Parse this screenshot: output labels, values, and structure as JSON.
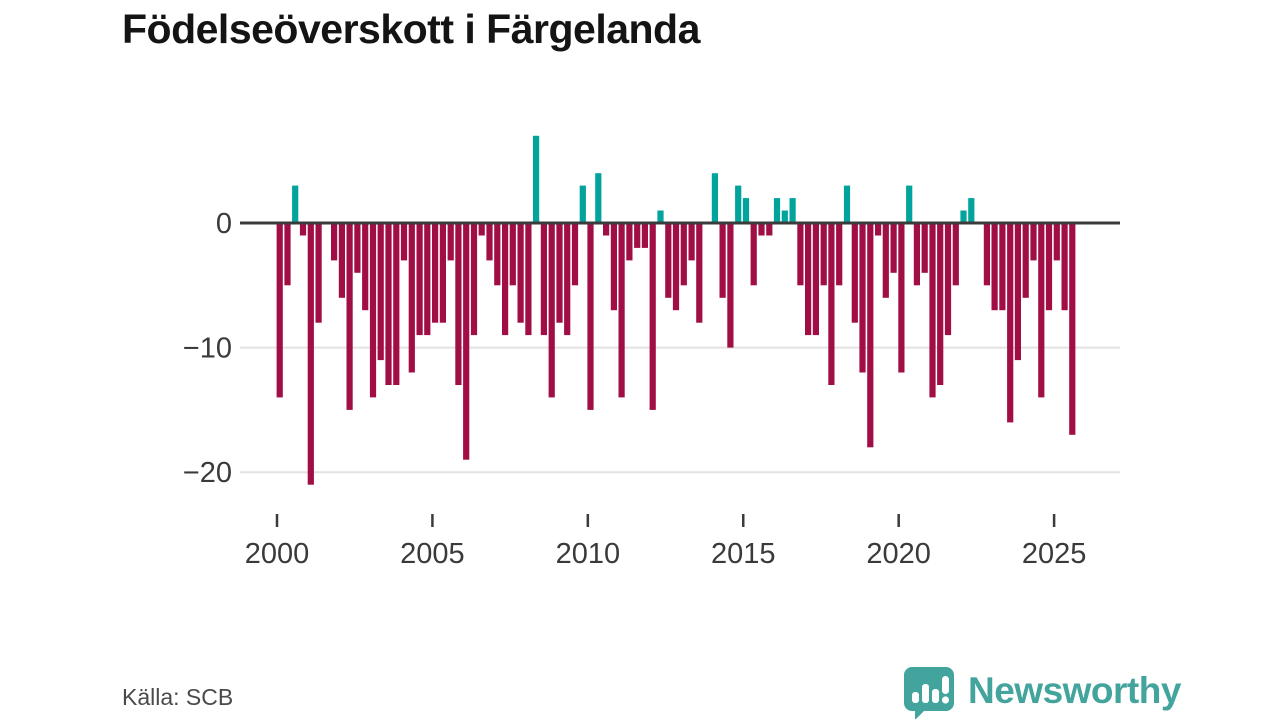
{
  "title": "Födelseöverskott i Färgelanda",
  "source": "Källa: SCB",
  "logo": {
    "text": "Newsworthy"
  },
  "colors": {
    "positive_bar": "#00a49c",
    "negative_bar": "#a10d45",
    "axis": "#3b3b3b",
    "grid": "#e2e2e2",
    "tick_label": "#3a3a3a",
    "source_text": "#4a4a4a",
    "logo_teal": "#43a49e"
  },
  "chart_data": {
    "type": "bar",
    "title": "Födelseöverskott i Färgelanda",
    "frequency": "quarterly",
    "x_start": "2000 Q1",
    "x_end": "2025 Q3",
    "xlabel": "",
    "ylabel": "",
    "ylim": [
      -22,
      8
    ],
    "grid": true,
    "legend": false,
    "y_ticks": [
      0,
      -10,
      -20
    ],
    "y_tick_labels": [
      "0",
      "−10",
      "−20"
    ],
    "x_tick_labels": [
      "2000",
      "2005",
      "2010",
      "2015",
      "2020",
      "2025"
    ],
    "values": [
      -14,
      -5,
      3,
      -1,
      -21,
      -8,
      0,
      -3,
      -6,
      -15,
      -4,
      -7,
      -14,
      -11,
      -13,
      -13,
      -3,
      -12,
      -9,
      -9,
      -8,
      -8,
      -3,
      -13,
      -19,
      -9,
      -1,
      -3,
      -5,
      -9,
      -5,
      -8,
      -9,
      7,
      -9,
      -14,
      -8,
      -9,
      -5,
      3,
      -15,
      4,
      -1,
      -7,
      -14,
      -3,
      -2,
      -2,
      -15,
      1,
      -6,
      -7,
      -5,
      -3,
      -8,
      0,
      4,
      -6,
      -10,
      3,
      2,
      -5,
      -1,
      -1,
      2,
      1,
      2,
      -5,
      -9,
      -9,
      -5,
      -13,
      -5,
      3,
      -8,
      -12,
      -18,
      -1,
      -6,
      -4,
      -12,
      3,
      -5,
      -4,
      -14,
      -13,
      -9,
      -5,
      1,
      2,
      0,
      -5,
      -7,
      -7,
      -16,
      -11,
      -6,
      -3,
      -14,
      -7,
      -3,
      -7,
      -17
    ]
  }
}
